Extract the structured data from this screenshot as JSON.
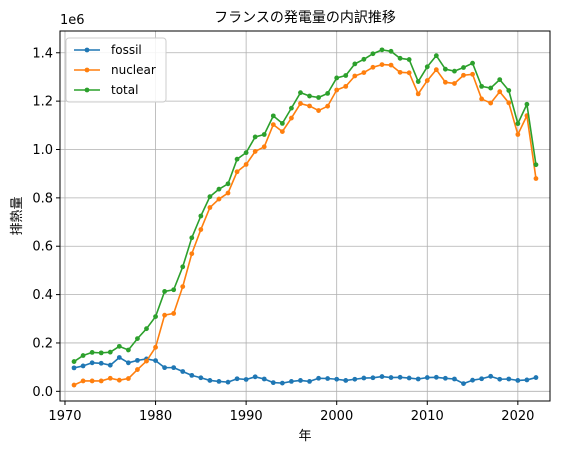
{
  "chart_data": {
    "type": "line",
    "title": "フランスの発電量の内訳推移",
    "xlabel": "年",
    "ylabel": "排熱量",
    "y_offset_label": "1e6",
    "xlim": [
      1969.45,
      2023.55
    ],
    "ylim": [
      -0.04,
      1.49
    ],
    "x_ticks": [
      1970,
      1980,
      1990,
      2000,
      2010,
      2020
    ],
    "y_ticks": [
      0.0,
      0.2,
      0.4,
      0.6,
      0.8,
      1.0,
      1.2,
      1.4
    ],
    "y_tick_labels": [
      "0.0",
      "0.2",
      "0.4",
      "0.6",
      "0.8",
      "1.0",
      "1.2",
      "1.4"
    ],
    "grid": true,
    "legend_position": "top-left",
    "x": [
      1971,
      1972,
      1973,
      1974,
      1975,
      1976,
      1977,
      1978,
      1979,
      1980,
      1981,
      1982,
      1983,
      1984,
      1985,
      1986,
      1987,
      1988,
      1989,
      1990,
      1991,
      1992,
      1993,
      1994,
      1995,
      1996,
      1997,
      1998,
      1999,
      2000,
      2001,
      2002,
      2003,
      2004,
      2005,
      2006,
      2007,
      2008,
      2009,
      2010,
      2011,
      2012,
      2013,
      2014,
      2015,
      2016,
      2017,
      2018,
      2019,
      2020,
      2021,
      2022
    ],
    "series": [
      {
        "name": "fossil",
        "color": "#1f77b4",
        "values": [
          0.097,
          0.105,
          0.118,
          0.116,
          0.108,
          0.14,
          0.118,
          0.128,
          0.134,
          0.127,
          0.098,
          0.098,
          0.082,
          0.066,
          0.056,
          0.045,
          0.041,
          0.038,
          0.052,
          0.049,
          0.06,
          0.051,
          0.036,
          0.034,
          0.041,
          0.045,
          0.041,
          0.054,
          0.053,
          0.05,
          0.045,
          0.05,
          0.055,
          0.056,
          0.061,
          0.057,
          0.058,
          0.055,
          0.051,
          0.057,
          0.058,
          0.054,
          0.051,
          0.032,
          0.046,
          0.052,
          0.062,
          0.05,
          0.051,
          0.045,
          0.047,
          0.057
        ]
      },
      {
        "name": "nuclear",
        "color": "#ff7f0e",
        "values": [
          0.026,
          0.043,
          0.043,
          0.043,
          0.054,
          0.046,
          0.053,
          0.09,
          0.125,
          0.182,
          0.315,
          0.322,
          0.433,
          0.569,
          0.669,
          0.76,
          0.795,
          0.82,
          0.908,
          0.938,
          0.992,
          1.011,
          1.103,
          1.074,
          1.13,
          1.19,
          1.18,
          1.161,
          1.179,
          1.246,
          1.261,
          1.304,
          1.318,
          1.34,
          1.351,
          1.349,
          1.319,
          1.317,
          1.23,
          1.285,
          1.33,
          1.278,
          1.273,
          1.307,
          1.311,
          1.209,
          1.192,
          1.239,
          1.193,
          1.062,
          1.14,
          0.88
        ]
      },
      {
        "name": "total",
        "color": "#2ca02c",
        "values": [
          0.123,
          0.148,
          0.161,
          0.159,
          0.162,
          0.186,
          0.171,
          0.218,
          0.259,
          0.309,
          0.413,
          0.42,
          0.515,
          0.635,
          0.725,
          0.805,
          0.836,
          0.858,
          0.96,
          0.987,
          1.052,
          1.062,
          1.139,
          1.108,
          1.171,
          1.235,
          1.221,
          1.215,
          1.232,
          1.296,
          1.306,
          1.354,
          1.373,
          1.396,
          1.412,
          1.406,
          1.377,
          1.372,
          1.281,
          1.342,
          1.388,
          1.332,
          1.324,
          1.339,
          1.357,
          1.261,
          1.254,
          1.289,
          1.244,
          1.107,
          1.187,
          0.937
        ]
      }
    ]
  }
}
